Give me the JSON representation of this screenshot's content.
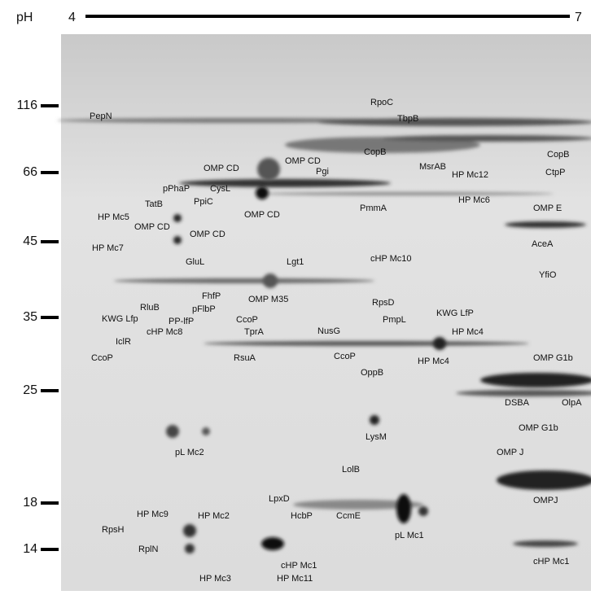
{
  "axis": {
    "ph_label": "pH",
    "ph_min": 4,
    "ph_max": 7
  },
  "mw_labels": [
    116,
    66,
    45,
    35,
    25,
    18,
    14
  ],
  "spots": [
    {
      "label": "PepN"
    },
    {
      "label": "RpoC"
    },
    {
      "label": "TbpB"
    },
    {
      "label": "CopB"
    },
    {
      "label": "CopB"
    },
    {
      "label": "CtpP"
    },
    {
      "label": "OMP CD"
    },
    {
      "label": "OMP CD"
    },
    {
      "label": "Pgi"
    },
    {
      "label": "MsrAB"
    },
    {
      "label": "HP Mc12"
    },
    {
      "label": "pPhaP"
    },
    {
      "label": "CysL"
    },
    {
      "label": "TatB"
    },
    {
      "label": "PpiC"
    },
    {
      "label": "OMP CD"
    },
    {
      "label": "PmmA"
    },
    {
      "label": "HP Mc6"
    },
    {
      "label": "HP Mc5"
    },
    {
      "label": "OMP CD"
    },
    {
      "label": "OMP E"
    },
    {
      "label": "OMP CD"
    },
    {
      "label": "HP Mc7"
    },
    {
      "label": "AceA"
    },
    {
      "label": "cHP Mc10"
    },
    {
      "label": "GluL"
    },
    {
      "label": "Lgt1"
    },
    {
      "label": "YfiO"
    },
    {
      "label": "FhfP"
    },
    {
      "label": "OMP M35"
    },
    {
      "label": "pFlbP"
    },
    {
      "label": "RpsD"
    },
    {
      "label": "RluB"
    },
    {
      "label": "KWG Lfp"
    },
    {
      "label": "PP-lfP"
    },
    {
      "label": "PmpL"
    },
    {
      "label": "KWG LfP"
    },
    {
      "label": "CcoP"
    },
    {
      "label": "cHP Mc8"
    },
    {
      "label": "NusG"
    },
    {
      "label": "HP Mc4"
    },
    {
      "label": "TprA"
    },
    {
      "label": "IclR"
    },
    {
      "label": "HP Mc4"
    },
    {
      "label": "CcoP"
    },
    {
      "label": "CcoP"
    },
    {
      "label": "RsuA"
    },
    {
      "label": "OMP G1b"
    },
    {
      "label": "OppB"
    },
    {
      "label": "DSBA"
    },
    {
      "label": "OlpA"
    },
    {
      "label": "OMP G1b"
    },
    {
      "label": "pL Mc2"
    },
    {
      "label": "LysM"
    },
    {
      "label": "OMP J"
    },
    {
      "label": "LolB"
    },
    {
      "label": "OMPJ"
    },
    {
      "label": "LpxD"
    },
    {
      "label": "HcbP"
    },
    {
      "label": "CcmE"
    },
    {
      "label": "pL Mc1"
    },
    {
      "label": "HP Mc9"
    },
    {
      "label": "HP Mc2"
    },
    {
      "label": "RpsH"
    },
    {
      "label": "RplN"
    },
    {
      "label": "cHP Mc1"
    },
    {
      "label": "cHP Mc1"
    },
    {
      "label": "HP Mc3"
    },
    {
      "label": "HP Mc11"
    }
  ]
}
